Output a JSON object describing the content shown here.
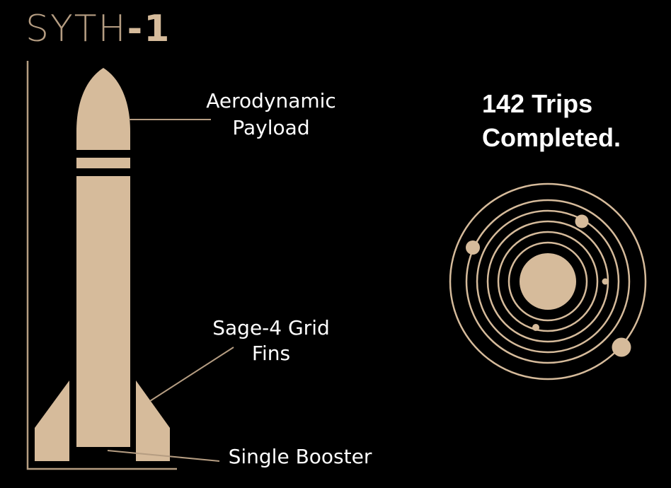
{
  "brand": {
    "name": "SYTH",
    "suffix": "-1"
  },
  "labels": {
    "payload_line1": "Aerodynamic",
    "payload_line2": "Payload",
    "fins_line1": "Sage-4 Grid",
    "fins_line2": "Fins",
    "booster": "Single Booster"
  },
  "stats": {
    "line1": "142 Trips",
    "line2": "Completed."
  },
  "colors": {
    "accent": "#d6bb9b",
    "line": "#b59d82",
    "background": "#000000",
    "text": "#ffffff"
  },
  "icons": {
    "rocket": "rocket-illustration",
    "orbits": "solar-system-icon"
  }
}
